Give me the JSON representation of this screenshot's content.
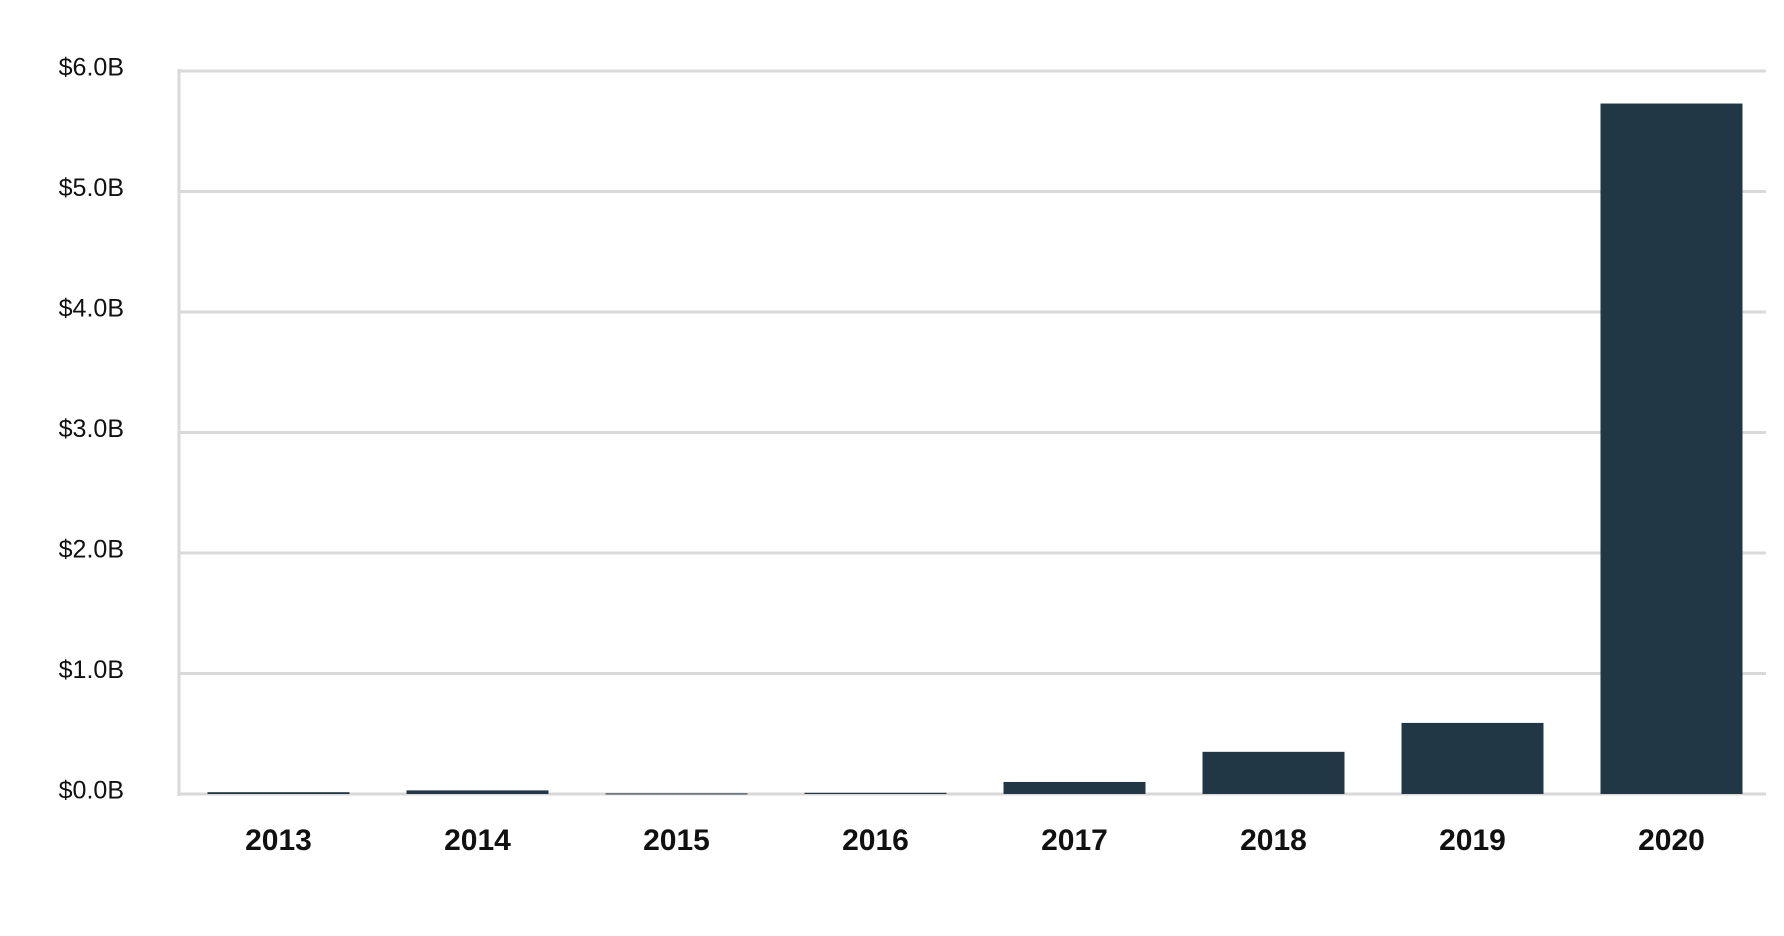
{
  "chart_data": {
    "type": "bar",
    "categories": [
      "2013",
      "2014",
      "2015",
      "2016",
      "2017",
      "2018",
      "2019",
      "2020"
    ],
    "values": [
      0.015,
      0.03,
      0.005,
      0.01,
      0.1,
      0.35,
      0.59,
      5.73
    ],
    "color": "#213746",
    "ylim": [
      0,
      6
    ],
    "yticks": [
      {
        "value": 0,
        "label": "$0.0B"
      },
      {
        "value": 1,
        "label": "$1.0B"
      },
      {
        "value": 2,
        "label": "$2.0B"
      },
      {
        "value": 3,
        "label": "$3.0B"
      },
      {
        "value": 4,
        "label": "$4.0B"
      },
      {
        "value": 5,
        "label": "$5.0B"
      },
      {
        "value": 6,
        "label": "$6.0B"
      }
    ],
    "grid": true
  }
}
